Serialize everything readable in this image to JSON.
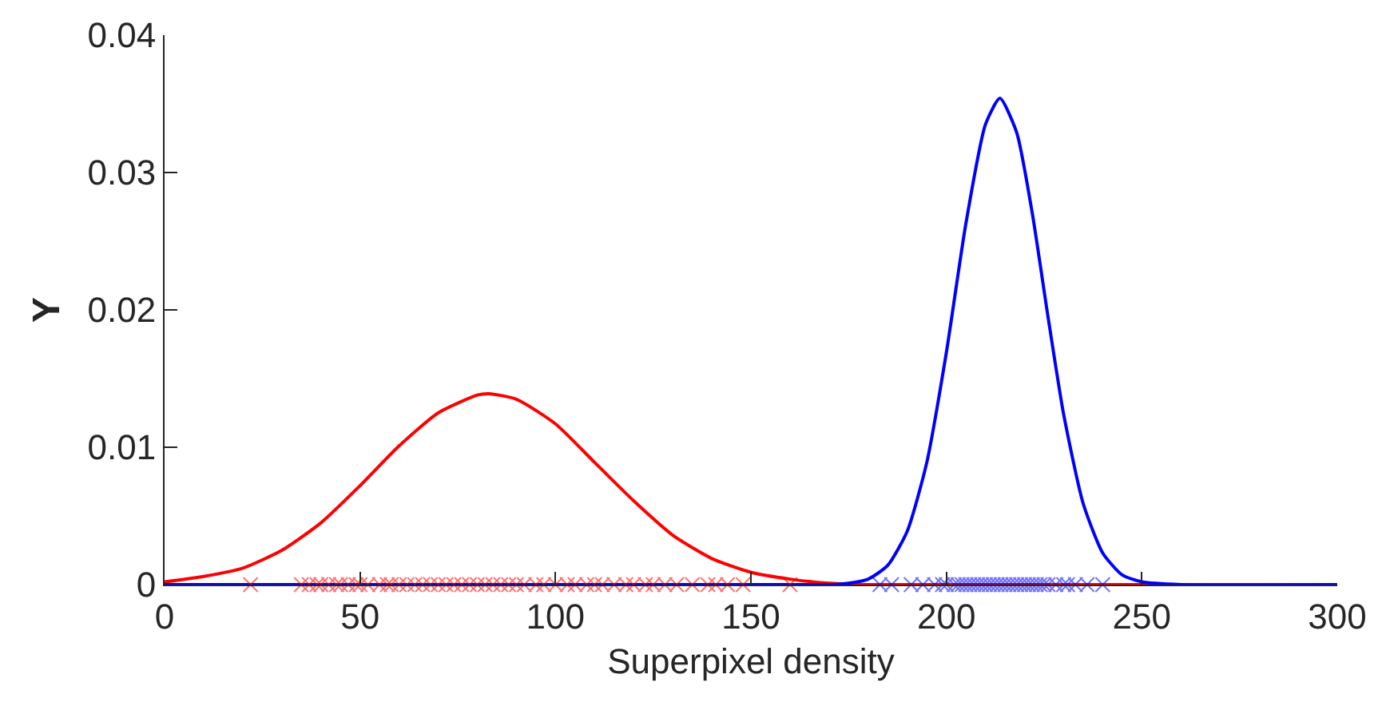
{
  "chart_data": {
    "type": "line",
    "xlabel": "Superpixel density",
    "ylabel": "Y",
    "xlim": [
      0,
      300
    ],
    "ylim": [
      0,
      0.04
    ],
    "xticks": [
      0,
      50,
      100,
      150,
      200,
      250,
      300
    ],
    "yticks": [
      0,
      0.01,
      0.02,
      0.03,
      0.04
    ],
    "grid": false,
    "line_style": "solid",
    "series": [
      {
        "color": "#ff0000",
        "x": [
          0,
          10,
          20,
          30,
          40,
          50,
          60,
          70,
          80,
          83,
          90,
          100,
          110,
          120,
          130,
          140,
          150,
          160,
          170,
          180,
          200,
          300
        ],
        "values": [
          0.0002,
          0.0006,
          0.0012,
          0.0025,
          0.0045,
          0.0072,
          0.0101,
          0.0125,
          0.0138,
          0.0139,
          0.0135,
          0.0117,
          0.0089,
          0.0061,
          0.0036,
          0.0019,
          0.0009,
          0.0004,
          0.0001,
          0,
          0,
          0
        ]
      },
      {
        "color": "#0000ff",
        "x": [
          0,
          170,
          175,
          180,
          185,
          190,
          195,
          200,
          205,
          210,
          213.7,
          218,
          222,
          226,
          230,
          235,
          240,
          245,
          250,
          260,
          300
        ],
        "values": [
          0,
          0,
          0.0001,
          0.0004,
          0.0014,
          0.0039,
          0.0089,
          0.0169,
          0.0263,
          0.0335,
          0.0354,
          0.0329,
          0.027,
          0.0195,
          0.0124,
          0.0059,
          0.0023,
          0.0007,
          0.0002,
          0,
          0
        ]
      },
      {
        "type": "scatter",
        "marker": "cross",
        "color": "#ff0000",
        "x": [
          22,
          35,
          37,
          39,
          40,
          42,
          44,
          45,
          47,
          49,
          50,
          52,
          55,
          57,
          58,
          60,
          62,
          64,
          66,
          68,
          70,
          72,
          74,
          76,
          78,
          80,
          82,
          84,
          86,
          88,
          90,
          92,
          95,
          97,
          100,
          103,
          105,
          108,
          110,
          112,
          115,
          118,
          120,
          123,
          125,
          128,
          131,
          135,
          139,
          141,
          144,
          148,
          160
        ],
        "values": [
          0,
          0,
          0,
          0,
          0,
          0,
          0,
          0,
          0,
          0,
          0,
          0,
          0,
          0,
          0,
          0,
          0,
          0,
          0,
          0,
          0,
          0,
          0,
          0,
          0,
          0,
          0,
          0,
          0,
          0,
          0,
          0,
          0,
          0,
          0,
          0,
          0,
          0,
          0,
          0,
          0,
          0,
          0,
          0,
          0,
          0,
          0,
          0,
          0,
          0,
          0,
          0,
          0
        ]
      },
      {
        "type": "scatter",
        "marker": "cross",
        "color": "#0000ff",
        "x": [
          183,
          186,
          191,
          194,
          197,
          199,
          200,
          202,
          203,
          204,
          205,
          206,
          207,
          208,
          209,
          210,
          211,
          212,
          213,
          214,
          215,
          216,
          217,
          218,
          219,
          220,
          221,
          222,
          223,
          224,
          225,
          226,
          228,
          230,
          231,
          233,
          236,
          240
        ],
        "values": [
          0,
          0,
          0,
          0,
          0,
          0,
          0,
          0,
          0,
          0,
          0,
          0,
          0,
          0,
          0,
          0,
          0,
          0,
          0,
          0,
          0,
          0,
          0,
          0,
          0,
          0,
          0,
          0,
          0,
          0,
          0,
          0,
          0,
          0,
          0,
          0,
          0,
          0
        ]
      }
    ]
  }
}
